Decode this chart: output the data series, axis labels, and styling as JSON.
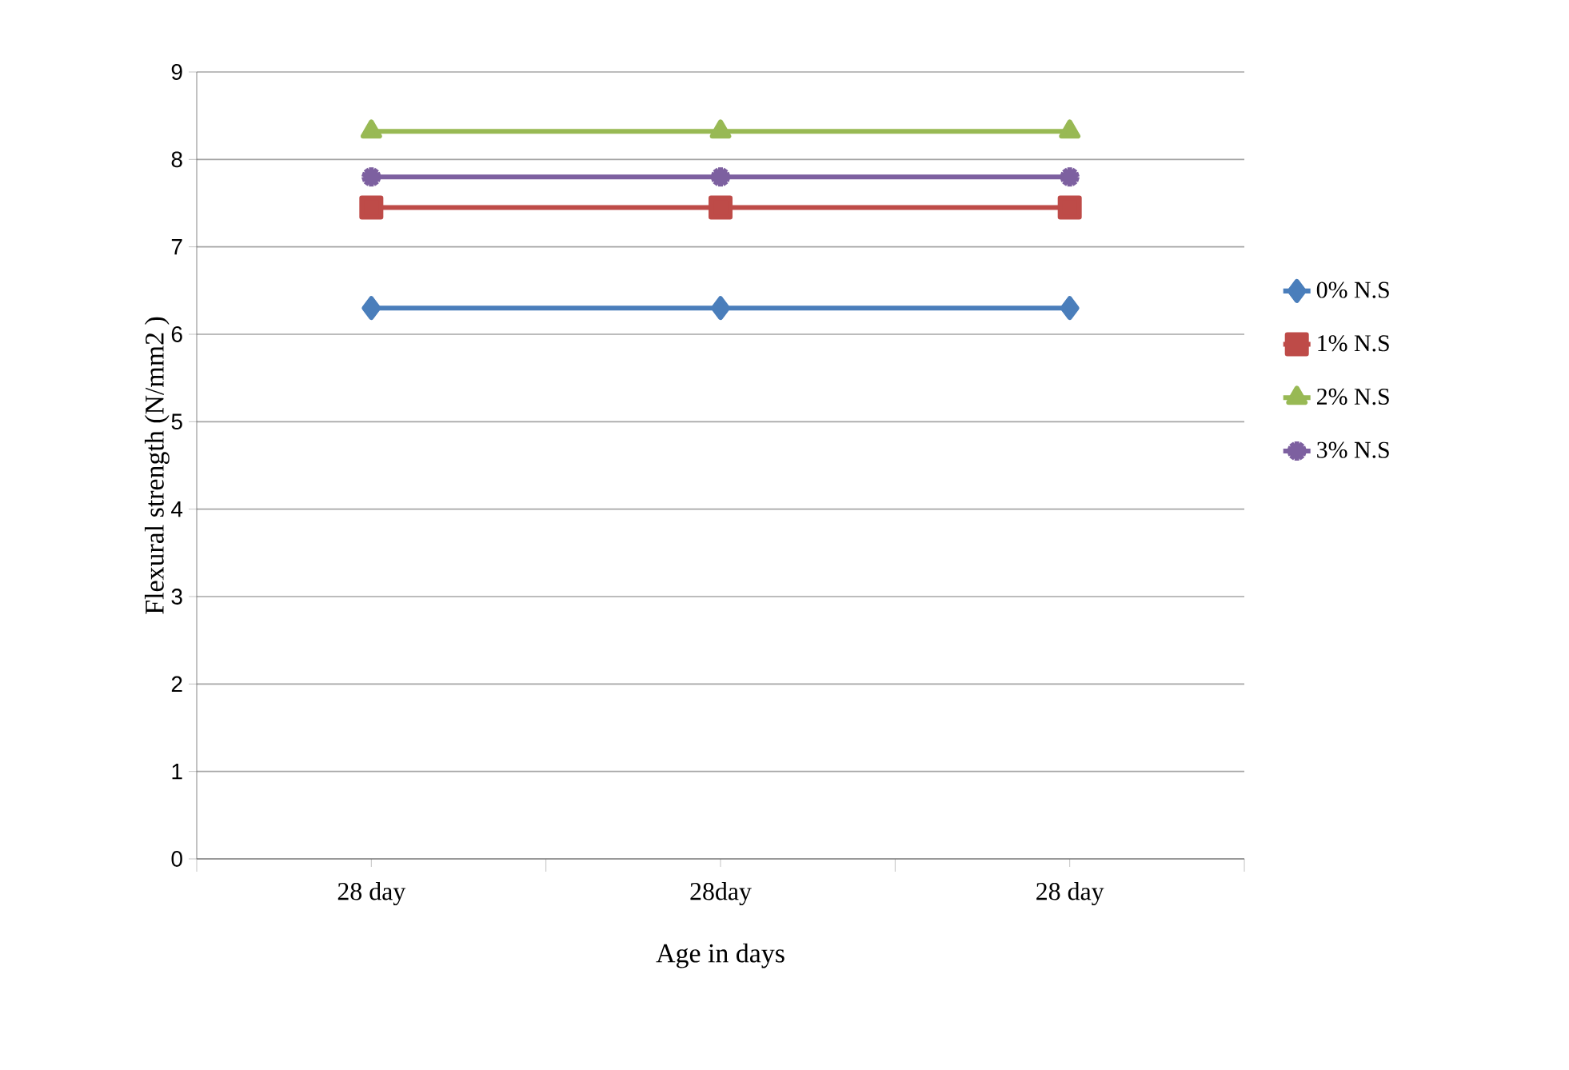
{
  "chart_data": {
    "type": "line",
    "xlabel": "Age in days",
    "ylabel": "Flexural strength (N/mm2 )",
    "categories": [
      "28 day",
      "28day",
      "28 day"
    ],
    "series": [
      {
        "name": "0% N.S",
        "color": "#4a7ebb",
        "marker": "diamond",
        "values": [
          6.3,
          6.3,
          6.3
        ]
      },
      {
        "name": "1% N.S",
        "color": "#be4b48",
        "marker": "square",
        "values": [
          7.45,
          7.45,
          7.45
        ]
      },
      {
        "name": "2% N.S",
        "color": "#98b954",
        "marker": "triangle",
        "values": [
          8.32,
          8.32,
          8.32
        ]
      },
      {
        "name": "3% N.S",
        "color": "#7d60a0",
        "marker": "cross",
        "values": [
          7.8,
          7.8,
          7.8
        ]
      }
    ],
    "ylim": [
      0,
      9
    ],
    "yticks": [
      0,
      1,
      2,
      3,
      4,
      5,
      6,
      7,
      8,
      9
    ],
    "grid": "y",
    "legend": "right",
    "line_style": "solid"
  }
}
